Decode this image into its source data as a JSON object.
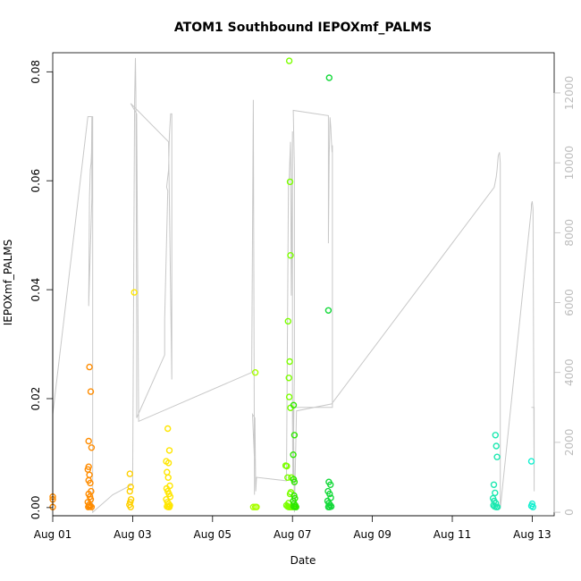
{
  "chart_data": {
    "type": "scatter",
    "title": "ATOM1 Southbound IEPOXmf_PALMS",
    "xlabel": "Date",
    "ylabel": "IEPOXmf_PALMS",
    "x_ticks": [
      "Aug 01",
      "Aug 03",
      "Aug 05",
      "Aug 07",
      "Aug 09",
      "Aug 11",
      "Aug 13"
    ],
    "y_ticks": [
      "0.00",
      "0.02",
      "0.04",
      "0.06",
      "0.08"
    ],
    "y_right_ticks": [
      "0",
      "2000",
      "4000",
      "6000",
      "8000",
      "10000",
      "12000"
    ],
    "xlim": [
      0.0,
      12.55
    ],
    "ylim": [
      -0.0015,
      0.0835
    ],
    "ylim_right": [
      -100,
      13150
    ],
    "grid": false,
    "points": [
      {
        "x": 0.0,
        "y": 0.002,
        "color": "#ff8c00"
      },
      {
        "x": 0.0,
        "y": 0.0015,
        "color": "#ff8c00"
      },
      {
        "x": 0.0,
        "y": 0.0001,
        "color": "#ff8c00"
      },
      {
        "x": 0.92,
        "y": 0.0258,
        "color": "#ff8c00"
      },
      {
        "x": 0.95,
        "y": 0.0213,
        "color": "#ff8c00"
      },
      {
        "x": 0.9,
        "y": 0.0122,
        "color": "#ff8c00"
      },
      {
        "x": 0.97,
        "y": 0.011,
        "color": "#ff8c00"
      },
      {
        "x": 0.9,
        "y": 0.0075,
        "color": "#ff8c00"
      },
      {
        "x": 0.88,
        "y": 0.007,
        "color": "#ff8c00"
      },
      {
        "x": 0.92,
        "y": 0.006,
        "color": "#ff8c00"
      },
      {
        "x": 0.9,
        "y": 0.005,
        "color": "#ff8c00"
      },
      {
        "x": 0.94,
        "y": 0.0045,
        "color": "#ff8c00"
      },
      {
        "x": 0.96,
        "y": 0.003,
        "color": "#ff8c00"
      },
      {
        "x": 0.9,
        "y": 0.0025,
        "color": "#ff8c00"
      },
      {
        "x": 0.93,
        "y": 0.002,
        "color": "#ff8c00"
      },
      {
        "x": 0.95,
        "y": 0.0015,
        "color": "#ff8c00"
      },
      {
        "x": 0.88,
        "y": 0.001,
        "color": "#ff8c00"
      },
      {
        "x": 0.91,
        "y": 0.0005,
        "color": "#ff8c00"
      },
      {
        "x": 0.94,
        "y": 0.0003,
        "color": "#ff8c00"
      },
      {
        "x": 0.97,
        "y": 0.0001,
        "color": "#ff8c00"
      },
      {
        "x": 0.89,
        "y": 0.0001,
        "color": "#ff8c00"
      },
      {
        "x": 0.92,
        "y": 0.0002,
        "color": "#ff8c00"
      },
      {
        "x": 1.93,
        "y": 0.0062,
        "color": "#ffd000"
      },
      {
        "x": 1.95,
        "y": 0.0038,
        "color": "#ffd000"
      },
      {
        "x": 1.93,
        "y": 0.003,
        "color": "#ffd000"
      },
      {
        "x": 1.96,
        "y": 0.0015,
        "color": "#ffd000"
      },
      {
        "x": 1.94,
        "y": 0.001,
        "color": "#ffd000"
      },
      {
        "x": 1.92,
        "y": 0.0005,
        "color": "#ffd000"
      },
      {
        "x": 1.95,
        "y": 0.0001,
        "color": "#ffd000"
      },
      {
        "x": 2.04,
        "y": 0.0395,
        "color": "#ffe600"
      },
      {
        "x": 2.88,
        "y": 0.0145,
        "color": "#ffe600"
      },
      {
        "x": 2.92,
        "y": 0.0105,
        "color": "#ffe600"
      },
      {
        "x": 2.84,
        "y": 0.0085,
        "color": "#ffe600"
      },
      {
        "x": 2.9,
        "y": 0.0082,
        "color": "#ffe600"
      },
      {
        "x": 2.86,
        "y": 0.0065,
        "color": "#ffe600"
      },
      {
        "x": 2.89,
        "y": 0.0055,
        "color": "#ffe600"
      },
      {
        "x": 2.93,
        "y": 0.004,
        "color": "#ffe600"
      },
      {
        "x": 2.85,
        "y": 0.0035,
        "color": "#ffe600"
      },
      {
        "x": 2.88,
        "y": 0.003,
        "color": "#ffe600"
      },
      {
        "x": 2.91,
        "y": 0.0025,
        "color": "#ffe600"
      },
      {
        "x": 2.94,
        "y": 0.002,
        "color": "#ffe600"
      },
      {
        "x": 2.84,
        "y": 0.0015,
        "color": "#ffe600"
      },
      {
        "x": 2.87,
        "y": 0.001,
        "color": "#ffe600"
      },
      {
        "x": 2.9,
        "y": 0.0007,
        "color": "#ffe600"
      },
      {
        "x": 2.93,
        "y": 0.0004,
        "color": "#ffe600"
      },
      {
        "x": 2.86,
        "y": 0.0002,
        "color": "#ffe600"
      },
      {
        "x": 2.89,
        "y": 0.0001,
        "color": "#ffe600"
      },
      {
        "x": 2.92,
        "y": 0.0001,
        "color": "#ffe600"
      },
      {
        "x": 5.07,
        "y": 0.0248,
        "color": "#a8ff00"
      },
      {
        "x": 5.02,
        "y": 0.0001,
        "color": "#a8ff00"
      },
      {
        "x": 5.07,
        "y": 0.0001,
        "color": "#a8ff00"
      },
      {
        "x": 5.1,
        "y": 0.0001,
        "color": "#a8ff00"
      },
      {
        "x": 5.92,
        "y": 0.082,
        "color": "#7cff00"
      },
      {
        "x": 5.94,
        "y": 0.0598,
        "color": "#7cff00"
      },
      {
        "x": 5.95,
        "y": 0.0463,
        "color": "#7cff00"
      },
      {
        "x": 5.89,
        "y": 0.0342,
        "color": "#7cff00"
      },
      {
        "x": 5.93,
        "y": 0.0268,
        "color": "#7cff00"
      },
      {
        "x": 5.91,
        "y": 0.0238,
        "color": "#7cff00"
      },
      {
        "x": 5.92,
        "y": 0.0203,
        "color": "#7cff00"
      },
      {
        "x": 5.95,
        "y": 0.0183,
        "color": "#7cff00"
      },
      {
        "x": 5.83,
        "y": 0.0077,
        "color": "#7cff00"
      },
      {
        "x": 5.86,
        "y": 0.0076,
        "color": "#7cff00"
      },
      {
        "x": 5.88,
        "y": 0.0055,
        "color": "#7cff00"
      },
      {
        "x": 5.97,
        "y": 0.0055,
        "color": "#7cff00"
      },
      {
        "x": 5.96,
        "y": 0.0028,
        "color": "#7cff00"
      },
      {
        "x": 5.94,
        "y": 0.0025,
        "color": "#7cff00"
      },
      {
        "x": 5.9,
        "y": 0.0008,
        "color": "#7cff00"
      },
      {
        "x": 5.85,
        "y": 0.0004,
        "color": "#7cff00"
      },
      {
        "x": 5.88,
        "y": 0.0002,
        "color": "#7cff00"
      },
      {
        "x": 5.91,
        "y": 0.0001,
        "color": "#7cff00"
      },
      {
        "x": 5.94,
        "y": 0.0001,
        "color": "#7cff00"
      },
      {
        "x": 5.97,
        "y": 0.0001,
        "color": "#7cff00"
      },
      {
        "x": 6.0,
        "y": 0.0001,
        "color": "#7cff00"
      },
      {
        "x": 6.03,
        "y": 0.0188,
        "color": "#2ee800"
      },
      {
        "x": 6.05,
        "y": 0.0133,
        "color": "#2ee800"
      },
      {
        "x": 6.02,
        "y": 0.0097,
        "color": "#2ee800"
      },
      {
        "x": 6.03,
        "y": 0.0052,
        "color": "#2ee800"
      },
      {
        "x": 6.05,
        "y": 0.0047,
        "color": "#2ee800"
      },
      {
        "x": 6.04,
        "y": 0.0022,
        "color": "#2ee800"
      },
      {
        "x": 6.06,
        "y": 0.0017,
        "color": "#2ee800"
      },
      {
        "x": 6.02,
        "y": 0.0012,
        "color": "#2ee800"
      },
      {
        "x": 6.04,
        "y": 0.0007,
        "color": "#2ee800"
      },
      {
        "x": 6.07,
        "y": 0.0004,
        "color": "#2ee800"
      },
      {
        "x": 6.03,
        "y": 0.0002,
        "color": "#2ee800"
      },
      {
        "x": 6.06,
        "y": 0.0001,
        "color": "#2ee800"
      },
      {
        "x": 6.09,
        "y": 0.0001,
        "color": "#2ee800"
      },
      {
        "x": 6.92,
        "y": 0.0789,
        "color": "#14d93a"
      },
      {
        "x": 6.9,
        "y": 0.0362,
        "color": "#14d93a"
      },
      {
        "x": 6.91,
        "y": 0.0047,
        "color": "#14d93a"
      },
      {
        "x": 6.95,
        "y": 0.0042,
        "color": "#14d93a"
      },
      {
        "x": 6.89,
        "y": 0.003,
        "color": "#14d93a"
      },
      {
        "x": 6.93,
        "y": 0.0025,
        "color": "#14d93a"
      },
      {
        "x": 6.96,
        "y": 0.0018,
        "color": "#14d93a"
      },
      {
        "x": 6.88,
        "y": 0.0012,
        "color": "#14d93a"
      },
      {
        "x": 6.91,
        "y": 0.0008,
        "color": "#14d93a"
      },
      {
        "x": 6.94,
        "y": 0.0005,
        "color": "#14d93a"
      },
      {
        "x": 6.97,
        "y": 0.0002,
        "color": "#14d93a"
      },
      {
        "x": 6.9,
        "y": 0.0001,
        "color": "#14d93a"
      },
      {
        "x": 6.93,
        "y": 0.0001,
        "color": "#14d93a"
      },
      {
        "x": 11.08,
        "y": 0.0133,
        "color": "#1ce8b0"
      },
      {
        "x": 11.1,
        "y": 0.0113,
        "color": "#1ce8b0"
      },
      {
        "x": 11.12,
        "y": 0.0093,
        "color": "#1ce8b0"
      },
      {
        "x": 11.04,
        "y": 0.0042,
        "color": "#1ce8b0"
      },
      {
        "x": 11.07,
        "y": 0.0027,
        "color": "#1ce8b0"
      },
      {
        "x": 11.02,
        "y": 0.0017,
        "color": "#1ce8b0"
      },
      {
        "x": 11.05,
        "y": 0.0012,
        "color": "#1ce8b0"
      },
      {
        "x": 11.09,
        "y": 0.0008,
        "color": "#1ce8b0"
      },
      {
        "x": 11.03,
        "y": 0.0004,
        "color": "#1ce8b0"
      },
      {
        "x": 11.06,
        "y": 0.0002,
        "color": "#1ce8b0"
      },
      {
        "x": 11.1,
        "y": 0.0001,
        "color": "#1ce8b0"
      },
      {
        "x": 11.13,
        "y": 0.0001,
        "color": "#1ce8b0"
      },
      {
        "x": 11.98,
        "y": 0.0085,
        "color": "#14f0d0"
      },
      {
        "x": 12.0,
        "y": 0.0007,
        "color": "#14f0d0"
      },
      {
        "x": 11.98,
        "y": 0.0003,
        "color": "#14f0d0"
      },
      {
        "x": 12.02,
        "y": 0.0001,
        "color": "#14f0d0"
      }
    ],
    "altitude_line": {
      "color": "#c8c8c8",
      "x": [
        0.0,
        0.0,
        0.88,
        0.88,
        0.98,
        0.98,
        0.9,
        0.92,
        0.94,
        0.96,
        0.97,
        0.98,
        1.0,
        1.0,
        1.0,
        1.0,
        1.5,
        2.0,
        2.05,
        2.07,
        2.08,
        2.1,
        2.1,
        2.8,
        2.8,
        2.88,
        2.85,
        2.9,
        2.92,
        2.95,
        2.98,
        2.98,
        2.9,
        1.95,
        2.1,
        2.15,
        4.98,
        5.02,
        5.05,
        5.05,
        5.0,
        5.06,
        5.08,
        5.1,
        5.85,
        5.9,
        5.92,
        5.95,
        5.97,
        6.0,
        6.0,
        6.01,
        6.05,
        6.05,
        6.02,
        6.9,
        6.9,
        6.92,
        6.93,
        6.94,
        6.96,
        6.97,
        6.99,
        7.0,
        7.0,
        6.02,
        6.05,
        6.1,
        6.98,
        11.05,
        11.1,
        11.12,
        11.15,
        11.18,
        11.2,
        11.2,
        11.98,
        11.98,
        12.0,
        12.02,
        12.05,
        12.05,
        11.98
      ],
      "y": [
        11320,
        2800,
        11320,
        11320,
        11320,
        9000,
        5900,
        9000,
        9800,
        10000,
        10300,
        11320,
        11320,
        0,
        0,
        0,
        500,
        800,
        11800,
        13000,
        12000,
        5500,
        2700,
        4500,
        5500,
        9200,
        9300,
        9800,
        10800,
        11400,
        11400,
        3800,
        10600,
        11700,
        11400,
        2600,
        4000,
        11800,
        500,
        1500,
        2800,
        2700,
        600,
        1000,
        900,
        9400,
        9600,
        10600,
        6200,
        10900,
        2600,
        800,
        4000,
        9800,
        11500,
        11350,
        7700,
        10200,
        10800,
        11300,
        11000,
        10700,
        10300,
        10500,
        3000,
        3000,
        0,
        2900,
        3100,
        9300,
        9600,
        9800,
        10200,
        10300,
        10000,
        100,
        8700,
        8800,
        8900,
        8700,
        600,
        3000,
        3000
      ]
    }
  }
}
